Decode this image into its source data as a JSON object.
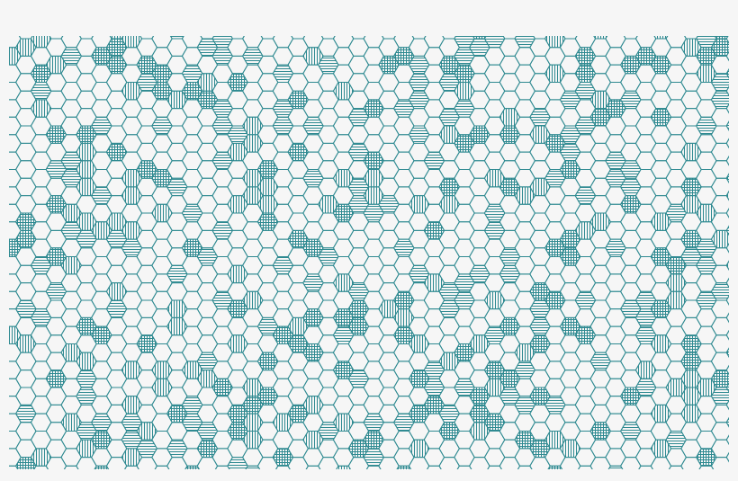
{
  "pattern": {
    "kind": "hexagon-grid",
    "colors": {
      "background": "#f6f6f6",
      "stroke": "#2f8a91"
    },
    "fill_styles": [
      "empty",
      "horizontal-lines",
      "vertical-lines",
      "crosshatch"
    ],
    "fill_frequency": {
      "empty": 0.68,
      "horizontal-lines": 0.13,
      "vertical-lines": 0.1,
      "crosshatch": 0.09
    },
    "seed": 20240611
  }
}
